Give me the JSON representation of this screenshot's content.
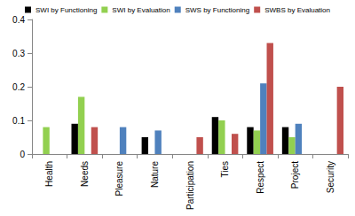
{
  "chart_data": {
    "type": "bar",
    "categories": [
      "Health",
      "Needs",
      "Pleasure",
      "Nature",
      "Participation",
      "Ties",
      "Respect",
      "Project",
      "Security"
    ],
    "series": [
      {
        "name": "SWI by Functioning",
        "color": "#000000",
        "values": [
          0,
          0.09,
          0,
          0.05,
          0,
          0.11,
          0.08,
          0.08,
          0
        ]
      },
      {
        "name": "SWI by Evaluation",
        "color": "#92d050",
        "values": [
          0.08,
          0.17,
          0,
          0,
          0,
          0.1,
          0.07,
          0.05,
          0
        ]
      },
      {
        "name": "SWS by Functioning",
        "color": "#4f81bd",
        "values": [
          0,
          0,
          0.08,
          0.07,
          0,
          0,
          0.21,
          0.09,
          0
        ]
      },
      {
        "name": "SWBS by Evaluation",
        "color": "#c0504d",
        "values": [
          0,
          0.08,
          0,
          0,
          0.05,
          0.06,
          0.33,
          0,
          0.2
        ]
      }
    ],
    "ylim": [
      0,
      0.4
    ],
    "yticks": [
      0,
      0.1,
      0.2,
      0.3,
      0.4
    ],
    "grid": false,
    "legend": "top"
  }
}
